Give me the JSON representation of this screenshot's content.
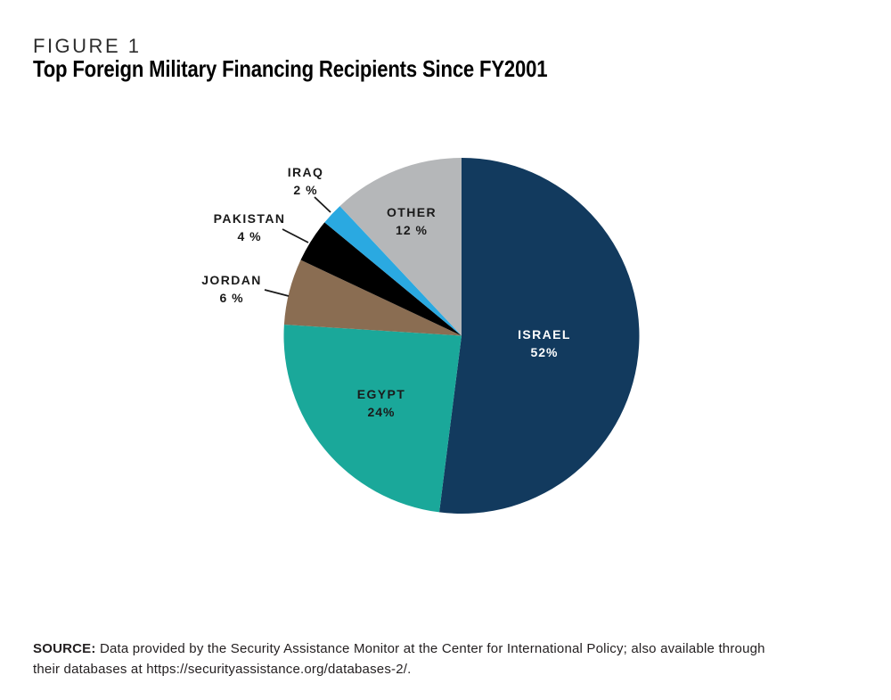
{
  "figure": {
    "kicker": "FIGURE 1",
    "title": "Top Foreign Military Financing Recipients Since FY2001"
  },
  "chart_data": {
    "type": "pie",
    "title": "Top Foreign Military Financing Recipients Since FY2001",
    "unit": "percent",
    "start_angle": "12 o'clock",
    "direction": "clockwise",
    "legend": "none (direct labels)",
    "slices": [
      {
        "label": "ISRAEL",
        "value": 52,
        "display": "52%",
        "color": "#123A5E",
        "text_color": "#FFFFFF",
        "label_placement": "inside"
      },
      {
        "label": "EGYPT",
        "value": 24,
        "display": "24%",
        "color": "#1AA89A",
        "text_color": "#1A1A1A",
        "label_placement": "inside"
      },
      {
        "label": "JORDAN",
        "value": 6,
        "display": "6 %",
        "color": "#8A6D52",
        "text_color": "#1A1A1A",
        "label_placement": "outside"
      },
      {
        "label": "PAKISTAN",
        "value": 4,
        "display": "4 %",
        "color": "#000000",
        "text_color": "#1A1A1A",
        "label_placement": "outside"
      },
      {
        "label": "IRAQ",
        "value": 2,
        "display": "2 %",
        "color": "#2AA9E1",
        "text_color": "#1A1A1A",
        "label_placement": "outside"
      },
      {
        "label": "OTHER",
        "value": 12,
        "display": "12 %",
        "color": "#B5B7B9",
        "text_color": "#1A1A1A",
        "label_placement": "inside"
      }
    ]
  },
  "source": {
    "label": "SOURCE:",
    "line1": "Data provided by the Security Assistance Monitor at the Center for International Policy; also available through",
    "line2": "their databases at https://securityassistance.org/databases-2/."
  }
}
